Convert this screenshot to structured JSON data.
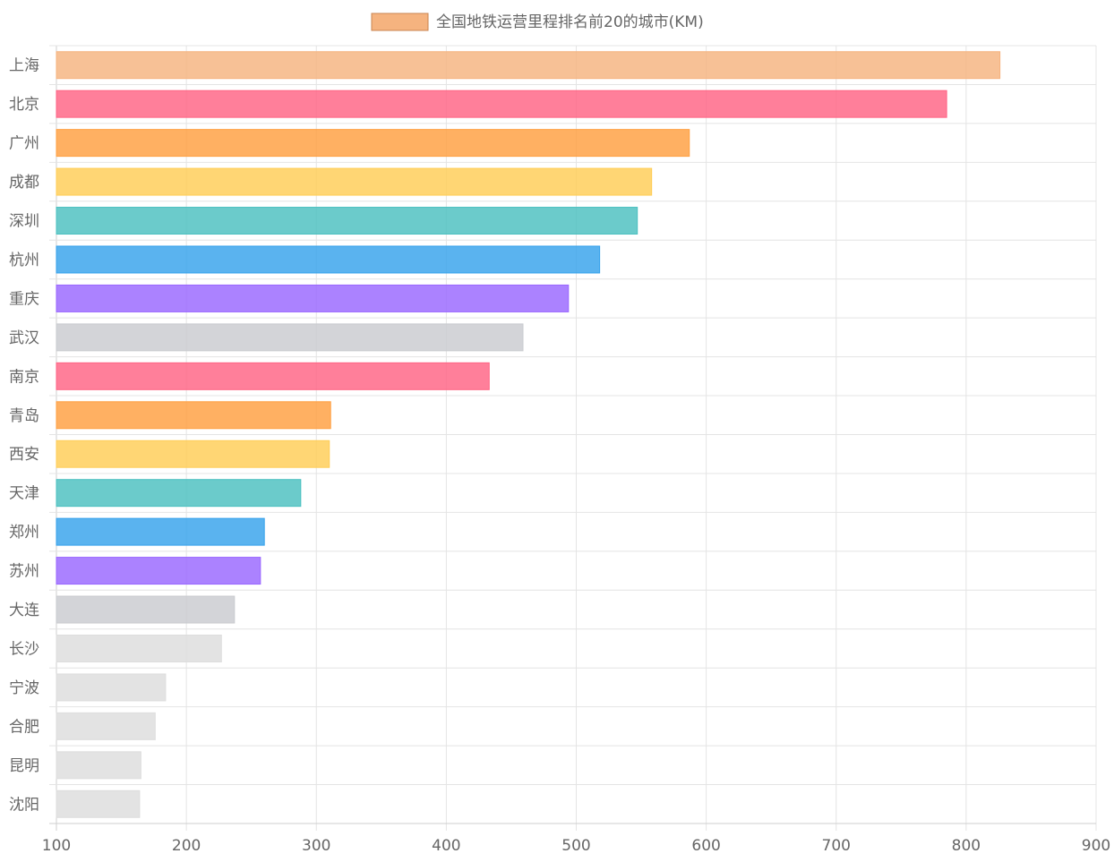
{
  "chart_data": {
    "type": "bar",
    "orientation": "horizontal",
    "legend": {
      "label": "全国地铁运营里程排名前20的城市(KM)",
      "position": "top-center",
      "swatch_color": "#f5b37f",
      "swatch_border": "#c98552"
    },
    "xlim": [
      100,
      900
    ],
    "x_ticks": [
      100,
      200,
      300,
      400,
      500,
      600,
      700,
      800,
      900
    ],
    "grid": true,
    "categories": [
      "上海",
      "北京",
      "广州",
      "成都",
      "深圳",
      "杭州",
      "重庆",
      "武汉",
      "南京",
      "青岛",
      "西安",
      "天津",
      "郑州",
      "苏州",
      "大连",
      "长沙",
      "宁波",
      "合肥",
      "昆明",
      "沈阳"
    ],
    "values": [
      826,
      785,
      587,
      558,
      547,
      518,
      494,
      459,
      433,
      311,
      310,
      288,
      260,
      257,
      237,
      227,
      184,
      176,
      165,
      164
    ],
    "colors": [
      "#f5b37f",
      "#ff6384",
      "#ff9f40",
      "#ffcd56",
      "#4bc0c0",
      "#36a2eb",
      "#9966ff",
      "#c9cbcf",
      "#ff6384",
      "#ff9f40",
      "#ffcd56",
      "#4bc0c0",
      "#36a2eb",
      "#9966ff",
      "#c9cbcf",
      "#dddddd",
      "#dddddd",
      "#dddddd",
      "#dddddd",
      "#dddddd"
    ]
  }
}
